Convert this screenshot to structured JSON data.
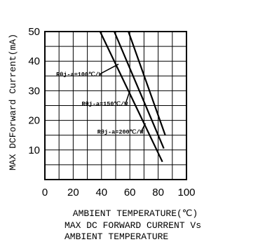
{
  "chart_data": {
    "type": "line",
    "xlabel": "AMBIENT TEMPERATURE(℃)",
    "ylabel": "MAX DCForward Current(mA)",
    "caption": [
      "MAX DC FORWARD CURRENT Vs",
      "AMBIENT TEMPERATURE"
    ],
    "xlim": [
      0,
      100
    ],
    "ylim": [
      0,
      50
    ],
    "xticks": [
      0,
      20,
      40,
      60,
      80,
      100
    ],
    "yticks": [
      10,
      20,
      30,
      40,
      50
    ],
    "grid": true,
    "series": [
      {
        "name": "Rθj-a=100℃/W",
        "x": [
          59,
          85
        ],
        "y": [
          50,
          15
        ],
        "label_anchor": [
          52,
          39
        ],
        "label_at": [
          8,
          35
        ]
      },
      {
        "name": "Rθj-a=150℃/W",
        "x": [
          49,
          84
        ],
        "y": [
          50,
          10.5
        ],
        "label_anchor": [
          60,
          30
        ],
        "label_at": [
          26,
          25
        ]
      },
      {
        "name": "Rθj-a=200℃/W",
        "x": [
          39,
          83
        ],
        "y": [
          50,
          6
        ],
        "label_anchor": [
          71,
          19
        ],
        "label_at": [
          37,
          15.5
        ]
      }
    ]
  }
}
